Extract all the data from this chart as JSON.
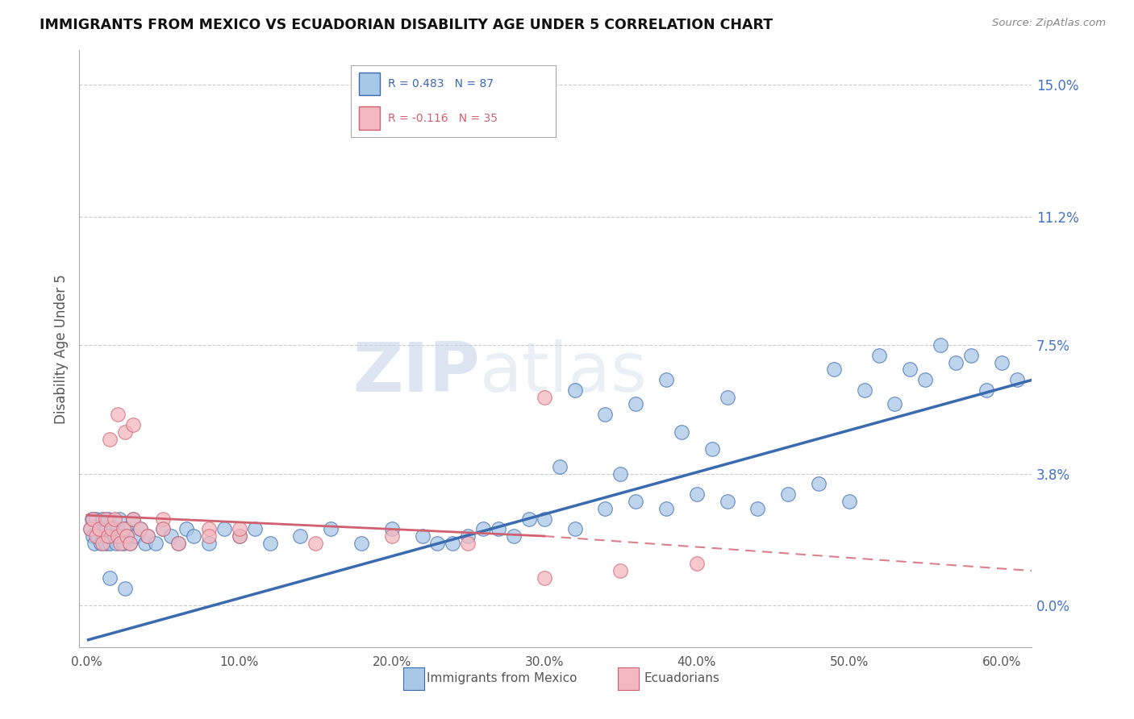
{
  "title": "IMMIGRANTS FROM MEXICO VS ECUADORIAN DISABILITY AGE UNDER 5 CORRELATION CHART",
  "source": "Source: ZipAtlas.com",
  "xlabel_ticks": [
    "0.0%",
    "10.0%",
    "20.0%",
    "30.0%",
    "40.0%",
    "50.0%",
    "60.0%"
  ],
  "xlabel_vals": [
    0.0,
    0.1,
    0.2,
    0.3,
    0.4,
    0.5,
    0.6
  ],
  "ylabel": "Disability Age Under 5",
  "ylabel_ticks": [
    "15.0%",
    "11.2%",
    "7.5%",
    "3.8%",
    "0.0%"
  ],
  "ylabel_vals": [
    0.15,
    0.112,
    0.075,
    0.038,
    0.0
  ],
  "xlim": [
    -0.005,
    0.62
  ],
  "ylim": [
    -0.012,
    0.16
  ],
  "color_mexico": "#a8c8e8",
  "color_ecuador": "#f4b8c0",
  "color_mexico_line": "#3a6ab0",
  "color_ecuador_line": "#d06070",
  "watermark_zip": "ZIP",
  "watermark_atlas": "atlas",
  "background": "#ffffff",
  "grid_color": "#cccccc",
  "mexico_x": [
    0.002,
    0.003,
    0.004,
    0.005,
    0.006,
    0.007,
    0.008,
    0.009,
    0.01,
    0.011,
    0.012,
    0.013,
    0.014,
    0.015,
    0.016,
    0.017,
    0.018,
    0.019,
    0.02,
    0.021,
    0.022,
    0.024,
    0.025,
    0.026,
    0.028,
    0.03,
    0.032,
    0.035,
    0.038,
    0.04,
    0.045,
    0.05,
    0.055,
    0.06,
    0.065,
    0.07,
    0.08,
    0.09,
    0.1,
    0.11,
    0.12,
    0.14,
    0.16,
    0.18,
    0.2,
    0.22,
    0.24,
    0.26,
    0.28,
    0.3,
    0.32,
    0.34,
    0.36,
    0.38,
    0.4,
    0.42,
    0.44,
    0.46,
    0.48,
    0.5,
    0.31,
    0.35,
    0.29,
    0.27,
    0.39,
    0.41,
    0.25,
    0.23,
    0.34,
    0.36,
    0.42,
    0.38,
    0.32,
    0.49,
    0.51,
    0.53,
    0.55,
    0.57,
    0.59,
    0.61,
    0.52,
    0.54,
    0.56,
    0.58,
    0.6,
    0.015,
    0.025
  ],
  "mexico_y": [
    0.022,
    0.025,
    0.02,
    0.018,
    0.025,
    0.02,
    0.022,
    0.018,
    0.025,
    0.02,
    0.018,
    0.022,
    0.025,
    0.018,
    0.02,
    0.022,
    0.02,
    0.018,
    0.022,
    0.025,
    0.02,
    0.018,
    0.022,
    0.02,
    0.018,
    0.025,
    0.02,
    0.022,
    0.018,
    0.02,
    0.018,
    0.022,
    0.02,
    0.018,
    0.022,
    0.02,
    0.018,
    0.022,
    0.02,
    0.022,
    0.018,
    0.02,
    0.022,
    0.018,
    0.022,
    0.02,
    0.018,
    0.022,
    0.02,
    0.025,
    0.022,
    0.028,
    0.03,
    0.028,
    0.032,
    0.03,
    0.028,
    0.032,
    0.035,
    0.03,
    0.04,
    0.038,
    0.025,
    0.022,
    0.05,
    0.045,
    0.02,
    0.018,
    0.055,
    0.058,
    0.06,
    0.065,
    0.062,
    0.068,
    0.062,
    0.058,
    0.065,
    0.07,
    0.062,
    0.065,
    0.072,
    0.068,
    0.075,
    0.072,
    0.07,
    0.008,
    0.005
  ],
  "ecuador_x": [
    0.002,
    0.004,
    0.006,
    0.008,
    0.01,
    0.012,
    0.014,
    0.016,
    0.018,
    0.02,
    0.022,
    0.024,
    0.026,
    0.028,
    0.03,
    0.035,
    0.04,
    0.05,
    0.06,
    0.08,
    0.1,
    0.015,
    0.02,
    0.025,
    0.03,
    0.05,
    0.08,
    0.1,
    0.15,
    0.2,
    0.25,
    0.3,
    0.35,
    0.4,
    0.3
  ],
  "ecuador_y": [
    0.022,
    0.025,
    0.02,
    0.022,
    0.018,
    0.025,
    0.02,
    0.022,
    0.025,
    0.02,
    0.018,
    0.022,
    0.02,
    0.018,
    0.025,
    0.022,
    0.02,
    0.025,
    0.018,
    0.022,
    0.02,
    0.048,
    0.055,
    0.05,
    0.052,
    0.022,
    0.02,
    0.022,
    0.018,
    0.02,
    0.018,
    0.008,
    0.01,
    0.012,
    0.06
  ],
  "blue_line_x0": 0.0,
  "blue_line_y0": -0.01,
  "blue_line_x1": 0.62,
  "blue_line_y1": 0.065,
  "pink_line_x0": 0.0,
  "pink_line_y0": 0.026,
  "pink_line_x1": 0.3,
  "pink_line_x1dash": 0.62,
  "pink_line_y1": 0.02,
  "pink_line_y1dash": 0.01
}
